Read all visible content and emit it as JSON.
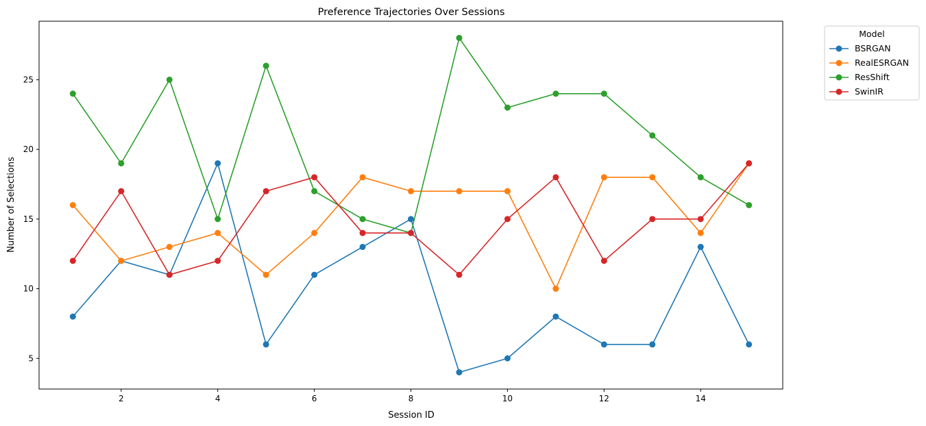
{
  "chart_data": {
    "type": "line",
    "title": "Preference Trajectories Over Sessions",
    "xlabel": "Session ID",
    "ylabel": "Number of Selections",
    "x": [
      1,
      2,
      3,
      4,
      5,
      6,
      7,
      8,
      9,
      10,
      11,
      12,
      13,
      14,
      15
    ],
    "xlim": [
      0.3,
      15.7
    ],
    "ylim": [
      2.8,
      29.2
    ],
    "xticks": [
      2,
      4,
      6,
      8,
      10,
      12,
      14
    ],
    "yticks": [
      5,
      10,
      15,
      20,
      25
    ],
    "grid": false,
    "legend": {
      "title": "Model",
      "placement": "outside-top-right"
    },
    "series": [
      {
        "name": "BSRGAN",
        "color": "#1f77b4",
        "values": [
          8,
          12,
          11,
          19,
          6,
          11,
          13,
          15,
          4,
          5,
          8,
          6,
          6,
          13,
          6
        ]
      },
      {
        "name": "RealESRGAN",
        "color": "#ff7f0e",
        "values": [
          16,
          12,
          13,
          14,
          11,
          14,
          18,
          17,
          17,
          17,
          10,
          18,
          18,
          14,
          19
        ]
      },
      {
        "name": "ResShift",
        "color": "#2ca02c",
        "values": [
          24,
          19,
          25,
          15,
          26,
          17,
          15,
          14,
          28,
          23,
          24,
          24,
          21,
          18,
          16
        ]
      },
      {
        "name": "SwinIR",
        "color": "#d62728",
        "values": [
          12,
          17,
          11,
          12,
          17,
          18,
          14,
          14,
          11,
          15,
          18,
          12,
          15,
          15,
          19
        ]
      }
    ]
  }
}
